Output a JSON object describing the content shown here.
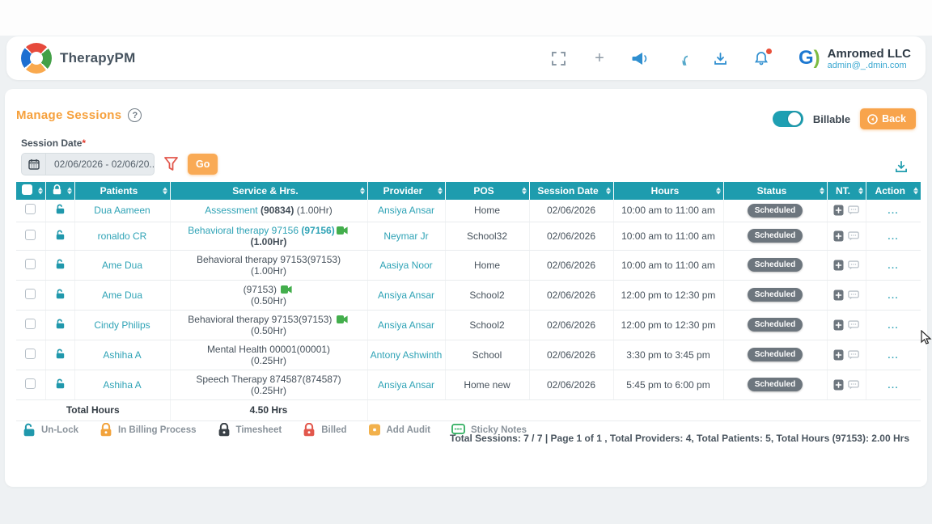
{
  "colors": {
    "teal_header": "#1e9cae",
    "teal_link": "#2fa3b6",
    "orange_accent": "#f8a44c",
    "badge_gray": "#6d767e",
    "red_filter": "#e2574c",
    "green_video": "#43ae4c"
  },
  "header": {
    "app_name": "TherapyPM",
    "icons": [
      "fullscreen-icon",
      "plus-icon",
      "megaphone-icon",
      "chat-icon",
      "download-icon",
      "bell-icon"
    ],
    "account": {
      "company": "Amromed LLC",
      "email": "admin@_.dmin.com"
    }
  },
  "page": {
    "title": "Manage Sessions",
    "help": "?",
    "billable_label": "Billable",
    "back_label": "Back",
    "session_date_label": "Session Date",
    "required_mark": "*",
    "date_range_value": "02/06/2026 - 02/06/20...",
    "go_label": "Go"
  },
  "table": {
    "headers": [
      "Patients",
      "Service & Hrs.",
      "Provider",
      "POS",
      "Session Date",
      "Hours",
      "Status",
      "NT.",
      "Action"
    ],
    "action_glyph": "...",
    "rows": [
      {
        "patient": "Dua Aameen",
        "service": [
          {
            "t": "Assessment ",
            "s": "link"
          },
          {
            "t": "(90834)",
            "s": "darkb"
          },
          {
            "t": " (1.00Hr)",
            "s": "dark"
          }
        ],
        "line2": "",
        "video_line1": false,
        "provider": "Ansiya Ansar",
        "pos": "Home",
        "date": "02/06/2026",
        "hours": "10:00 am to 11:00 am",
        "status": "Scheduled",
        "two_line": false
      },
      {
        "patient": "ronaldo CR",
        "service": [
          {
            "t": "Behavioral therapy 97156 ",
            "s": "link"
          },
          {
            "t": "(97156)",
            "s": "linkb"
          }
        ],
        "line2": "",
        "video_line1": true,
        "after_video": "(1.00Hr)",
        "provider": "Neymar Jr",
        "pos": "School32",
        "date": "02/06/2026",
        "hours": "10:00 am to 11:00 am",
        "status": "Scheduled",
        "two_line": false
      },
      {
        "patient": "Ame Dua",
        "service": [
          {
            "t": "Behavioral therapy 97153(97153)",
            "s": "dark"
          }
        ],
        "line2": "(1.00Hr)",
        "video_line1": false,
        "provider": "Aasiya Noor",
        "pos": "Home",
        "date": "02/06/2026",
        "hours": "10:00 am to 11:00 am",
        "status": "Scheduled",
        "two_line": true
      },
      {
        "patient": "Ame Dua",
        "service": [
          {
            "t": "(97153) ",
            "s": "dark"
          }
        ],
        "line2": "(0.50Hr)",
        "video_line1": true,
        "after_video": "",
        "provider": "Ansiya Ansar",
        "pos": "School2",
        "date": "02/06/2026",
        "hours": "12:00 pm to 12:30 pm",
        "status": "Scheduled",
        "two_line": true
      },
      {
        "patient": "Cindy Philips",
        "service": [
          {
            "t": "Behavioral therapy 97153(97153) ",
            "s": "dark"
          }
        ],
        "line2": "(0.50Hr)",
        "video_line1": true,
        "after_video": "",
        "provider": "Ansiya Ansar",
        "pos": "School2",
        "date": "02/06/2026",
        "hours": "12:00 pm to 12:30 pm",
        "status": "Scheduled",
        "two_line": true
      },
      {
        "patient": "Ashiha A",
        "service": [
          {
            "t": "Mental Health 00001(00001)",
            "s": "dark"
          }
        ],
        "line2": "(0.25Hr)",
        "video_line1": false,
        "provider": "Antony Ashwinth",
        "pos": "School",
        "date": "02/06/2026",
        "hours": "3:30 pm to 3:45 pm",
        "status": "Scheduled",
        "two_line": true
      },
      {
        "patient": "Ashiha A",
        "service": [
          {
            "t": "Speech Therapy 874587(874587)",
            "s": "dark"
          }
        ],
        "line2": "(0.25Hr)",
        "video_line1": false,
        "provider": "Ansiya Ansar",
        "pos": "Home new",
        "date": "02/06/2026",
        "hours": "5:45 pm to 6:00 pm",
        "status": "Scheduled",
        "two_line": true
      }
    ],
    "total_label": "Total Hours",
    "total_value": "4.50 Hrs"
  },
  "legend": {
    "items": [
      {
        "label": "Un-Lock",
        "icon": "unlock-icon",
        "color": "#2098ac"
      },
      {
        "label": "In Billing Process",
        "icon": "lock-icon",
        "color": "#f2a33c"
      },
      {
        "label": "Timesheet",
        "icon": "lock-icon",
        "color": "#3a4147"
      },
      {
        "label": "Billed",
        "icon": "lock-icon",
        "color": "#e2574c"
      },
      {
        "label": "Add Audit",
        "icon": "audit-icon",
        "color": "#f2a33c"
      },
      {
        "label": "Sticky Notes",
        "icon": "sticky-note-icon",
        "color": "#2fae5f"
      }
    ]
  },
  "summary": "Total Sessions: 7 / 7 | Page 1 of 1 , Total Providers: 4, Total Patients: 5, Total Hours (97153): 2.00 Hrs"
}
